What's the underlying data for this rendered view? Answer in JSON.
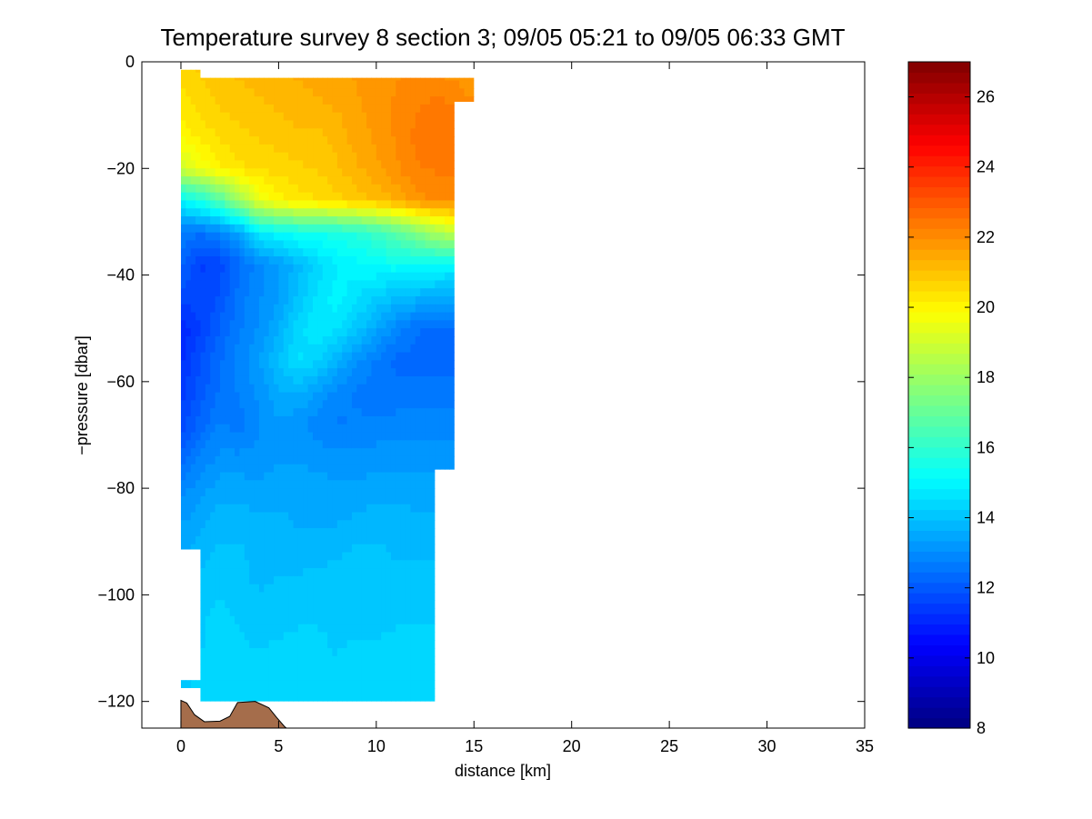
{
  "chart_data": {
    "type": "heatmap",
    "title": "Temperature survey 8 section 3; 09/05 05:21 to 09/05 06:33 GMT",
    "xlabel": "distance [km]",
    "ylabel": "−pressure [dbar]",
    "xlim": [
      -2,
      35
    ],
    "ylim": [
      -125,
      0
    ],
    "xticks": [
      0,
      5,
      10,
      15,
      20,
      25,
      30,
      35
    ],
    "yticks": [
      0,
      -20,
      -40,
      -60,
      -80,
      -100,
      -120
    ],
    "ytick_labels": [
      "0",
      "−20",
      "−40",
      "−60",
      "−80",
      "−100",
      "−120"
    ],
    "colorbar": {
      "colormap": "jet",
      "range": [
        8,
        27
      ],
      "ticks": [
        8,
        10,
        12,
        14,
        16,
        18,
        20,
        22,
        24,
        26
      ]
    },
    "field": {
      "x": [
        0,
        1,
        2,
        3,
        4,
        5,
        6,
        7,
        8,
        9,
        10,
        11,
        12,
        13,
        14,
        15
      ],
      "y": [
        -2,
        -8,
        -14,
        -20,
        -26,
        -32,
        -38,
        -44,
        -50,
        -56,
        -62,
        -68,
        -74,
        -80,
        -86,
        -92,
        -98,
        -104,
        -110,
        -116,
        -120
      ],
      "values_celsius": [
        [
          20.6,
          20.8,
          21.0,
          21.1,
          21.2,
          21.3,
          21.4,
          21.5,
          21.6,
          21.7,
          21.8,
          21.9,
          22.0,
          22.0,
          21.8,
          21.6
        ],
        [
          20.3,
          20.6,
          20.8,
          20.9,
          21.0,
          21.1,
          21.2,
          21.3,
          21.4,
          21.6,
          21.8,
          22.0,
          22.2,
          22.3,
          22.3,
          22.0
        ],
        [
          19.9,
          20.3,
          20.5,
          20.7,
          20.8,
          20.9,
          21.0,
          21.0,
          21.2,
          21.5,
          21.7,
          22.0,
          22.3,
          22.4,
          22.4,
          22.1
        ],
        [
          19.0,
          19.6,
          20.1,
          20.4,
          20.5,
          20.6,
          20.7,
          20.8,
          21.0,
          21.3,
          21.6,
          21.9,
          22.2,
          22.3,
          22.3,
          22.0
        ],
        [
          15.0,
          15.6,
          16.6,
          18.0,
          19.5,
          20.0,
          20.3,
          20.5,
          20.7,
          20.9,
          21.1,
          21.4,
          21.8,
          22.0,
          22.0,
          21.8
        ],
        [
          12.7,
          12.5,
          12.9,
          13.5,
          14.8,
          15.2,
          15.4,
          15.5,
          15.6,
          15.8,
          16.2,
          16.8,
          17.5,
          18.3,
          18.8,
          18.6
        ],
        [
          12.3,
          11.5,
          11.7,
          12.4,
          12.9,
          13.3,
          13.8,
          14.4,
          14.8,
          15.0,
          15.2,
          15.3,
          15.2,
          15.1,
          15.0,
          14.9
        ],
        [
          11.8,
          11.6,
          11.9,
          12.6,
          13.0,
          13.3,
          14.0,
          14.6,
          15.0,
          14.6,
          14.2,
          14.0,
          13.8,
          13.7,
          13.6,
          13.5
        ],
        [
          11.0,
          11.6,
          12.2,
          12.7,
          13.1,
          13.6,
          14.4,
          14.8,
          14.6,
          14.1,
          13.5,
          12.9,
          12.5,
          12.3,
          12.3,
          12.3
        ],
        [
          11.2,
          11.9,
          12.4,
          12.9,
          13.3,
          14.0,
          14.6,
          14.3,
          13.7,
          13.1,
          12.7,
          12.4,
          12.3,
          12.3,
          12.3,
          12.3
        ],
        [
          11.4,
          12.0,
          12.5,
          12.8,
          13.1,
          13.6,
          13.7,
          13.3,
          12.9,
          12.7,
          12.6,
          12.5,
          12.6,
          12.6,
          12.6,
          12.6
        ],
        [
          11.7,
          12.3,
          12.8,
          12.6,
          13.0,
          13.3,
          13.1,
          12.9,
          12.7,
          12.8,
          12.8,
          12.9,
          12.9,
          12.9,
          12.9,
          12.9
        ],
        [
          12.3,
          12.8,
          13.1,
          13.1,
          13.2,
          13.3,
          13.3,
          13.2,
          13.1,
          13.1,
          13.2,
          13.2,
          13.2,
          13.2,
          13.2,
          13.2
        ],
        [
          12.9,
          13.2,
          13.5,
          13.5,
          13.4,
          13.5,
          13.5,
          13.5,
          13.4,
          13.4,
          13.5,
          13.5,
          13.5,
          13.5,
          13.5,
          13.5
        ],
        [
          13.3,
          13.5,
          13.8,
          13.8,
          13.7,
          13.7,
          13.6,
          13.6,
          13.6,
          13.7,
          13.8,
          13.8,
          13.7,
          13.7,
          13.7,
          13.7
        ],
        [
          13.5,
          13.8,
          14.0,
          14.0,
          13.8,
          13.7,
          13.8,
          13.8,
          13.9,
          14.0,
          14.0,
          13.9,
          13.9,
          13.9,
          13.9,
          13.9
        ],
        [
          13.8,
          14.0,
          14.2,
          14.0,
          13.9,
          14.0,
          14.0,
          14.1,
          14.1,
          14.0,
          14.1,
          14.0,
          14.0,
          14.0,
          14.0,
          14.0
        ],
        [
          13.9,
          14.2,
          14.3,
          14.2,
          14.1,
          14.1,
          14.2,
          14.2,
          14.2,
          14.1,
          14.1,
          14.2,
          14.2,
          14.2,
          14.2,
          14.2
        ],
        [
          14.0,
          14.2,
          14.4,
          14.3,
          14.2,
          14.3,
          14.3,
          14.3,
          14.2,
          14.3,
          14.3,
          14.3,
          14.3,
          14.3,
          14.3,
          14.3
        ],
        [
          14.1,
          14.3,
          14.4,
          14.4,
          14.4,
          14.4,
          14.4,
          14.3,
          14.4,
          14.4,
          14.4,
          14.3,
          14.4,
          14.4,
          14.4,
          14.4
        ],
        [
          14.1,
          14.4,
          14.5,
          14.5,
          14.5,
          14.5,
          14.4,
          14.4,
          14.4,
          14.4,
          14.4,
          14.4,
          14.4,
          14.4,
          14.4,
          14.4
        ]
      ]
    },
    "data_extent": [
      {
        "x": 0,
        "y": -1.5
      },
      {
        "x": 1,
        "y": -1.5
      },
      {
        "x": 1,
        "y": -3
      },
      {
        "x": 15,
        "y": -3
      },
      {
        "x": 15,
        "y": -7.5
      },
      {
        "x": 14,
        "y": -7.5
      },
      {
        "x": 14,
        "y": -76.5
      },
      {
        "x": 13,
        "y": -76.5
      },
      {
        "x": 13,
        "y": -120
      },
      {
        "x": 1,
        "y": -120
      },
      {
        "x": 1,
        "y": -117.5
      },
      {
        "x": 0,
        "y": -117.5
      },
      {
        "x": 0,
        "y": -116
      },
      {
        "x": 1,
        "y": -116
      },
      {
        "x": 1,
        "y": -91.5
      },
      {
        "x": 0,
        "y": -91.5
      }
    ],
    "bathymetry": {
      "color": "#a56d4b",
      "points": [
        {
          "x": 0,
          "y": -125
        },
        {
          "x": 0,
          "y": -119.8
        },
        {
          "x": 0.3,
          "y": -120.3
        },
        {
          "x": 0.7,
          "y": -122.5
        },
        {
          "x": 1.2,
          "y": -123.8
        },
        {
          "x": 2.0,
          "y": -123.7
        },
        {
          "x": 2.5,
          "y": -122.8
        },
        {
          "x": 2.9,
          "y": -120.2
        },
        {
          "x": 3.8,
          "y": -120.0
        },
        {
          "x": 4.5,
          "y": -121.2
        },
        {
          "x": 4.9,
          "y": -123.0
        },
        {
          "x": 5.3,
          "y": -124.7
        },
        {
          "x": 5.4,
          "y": -125
        }
      ]
    }
  }
}
